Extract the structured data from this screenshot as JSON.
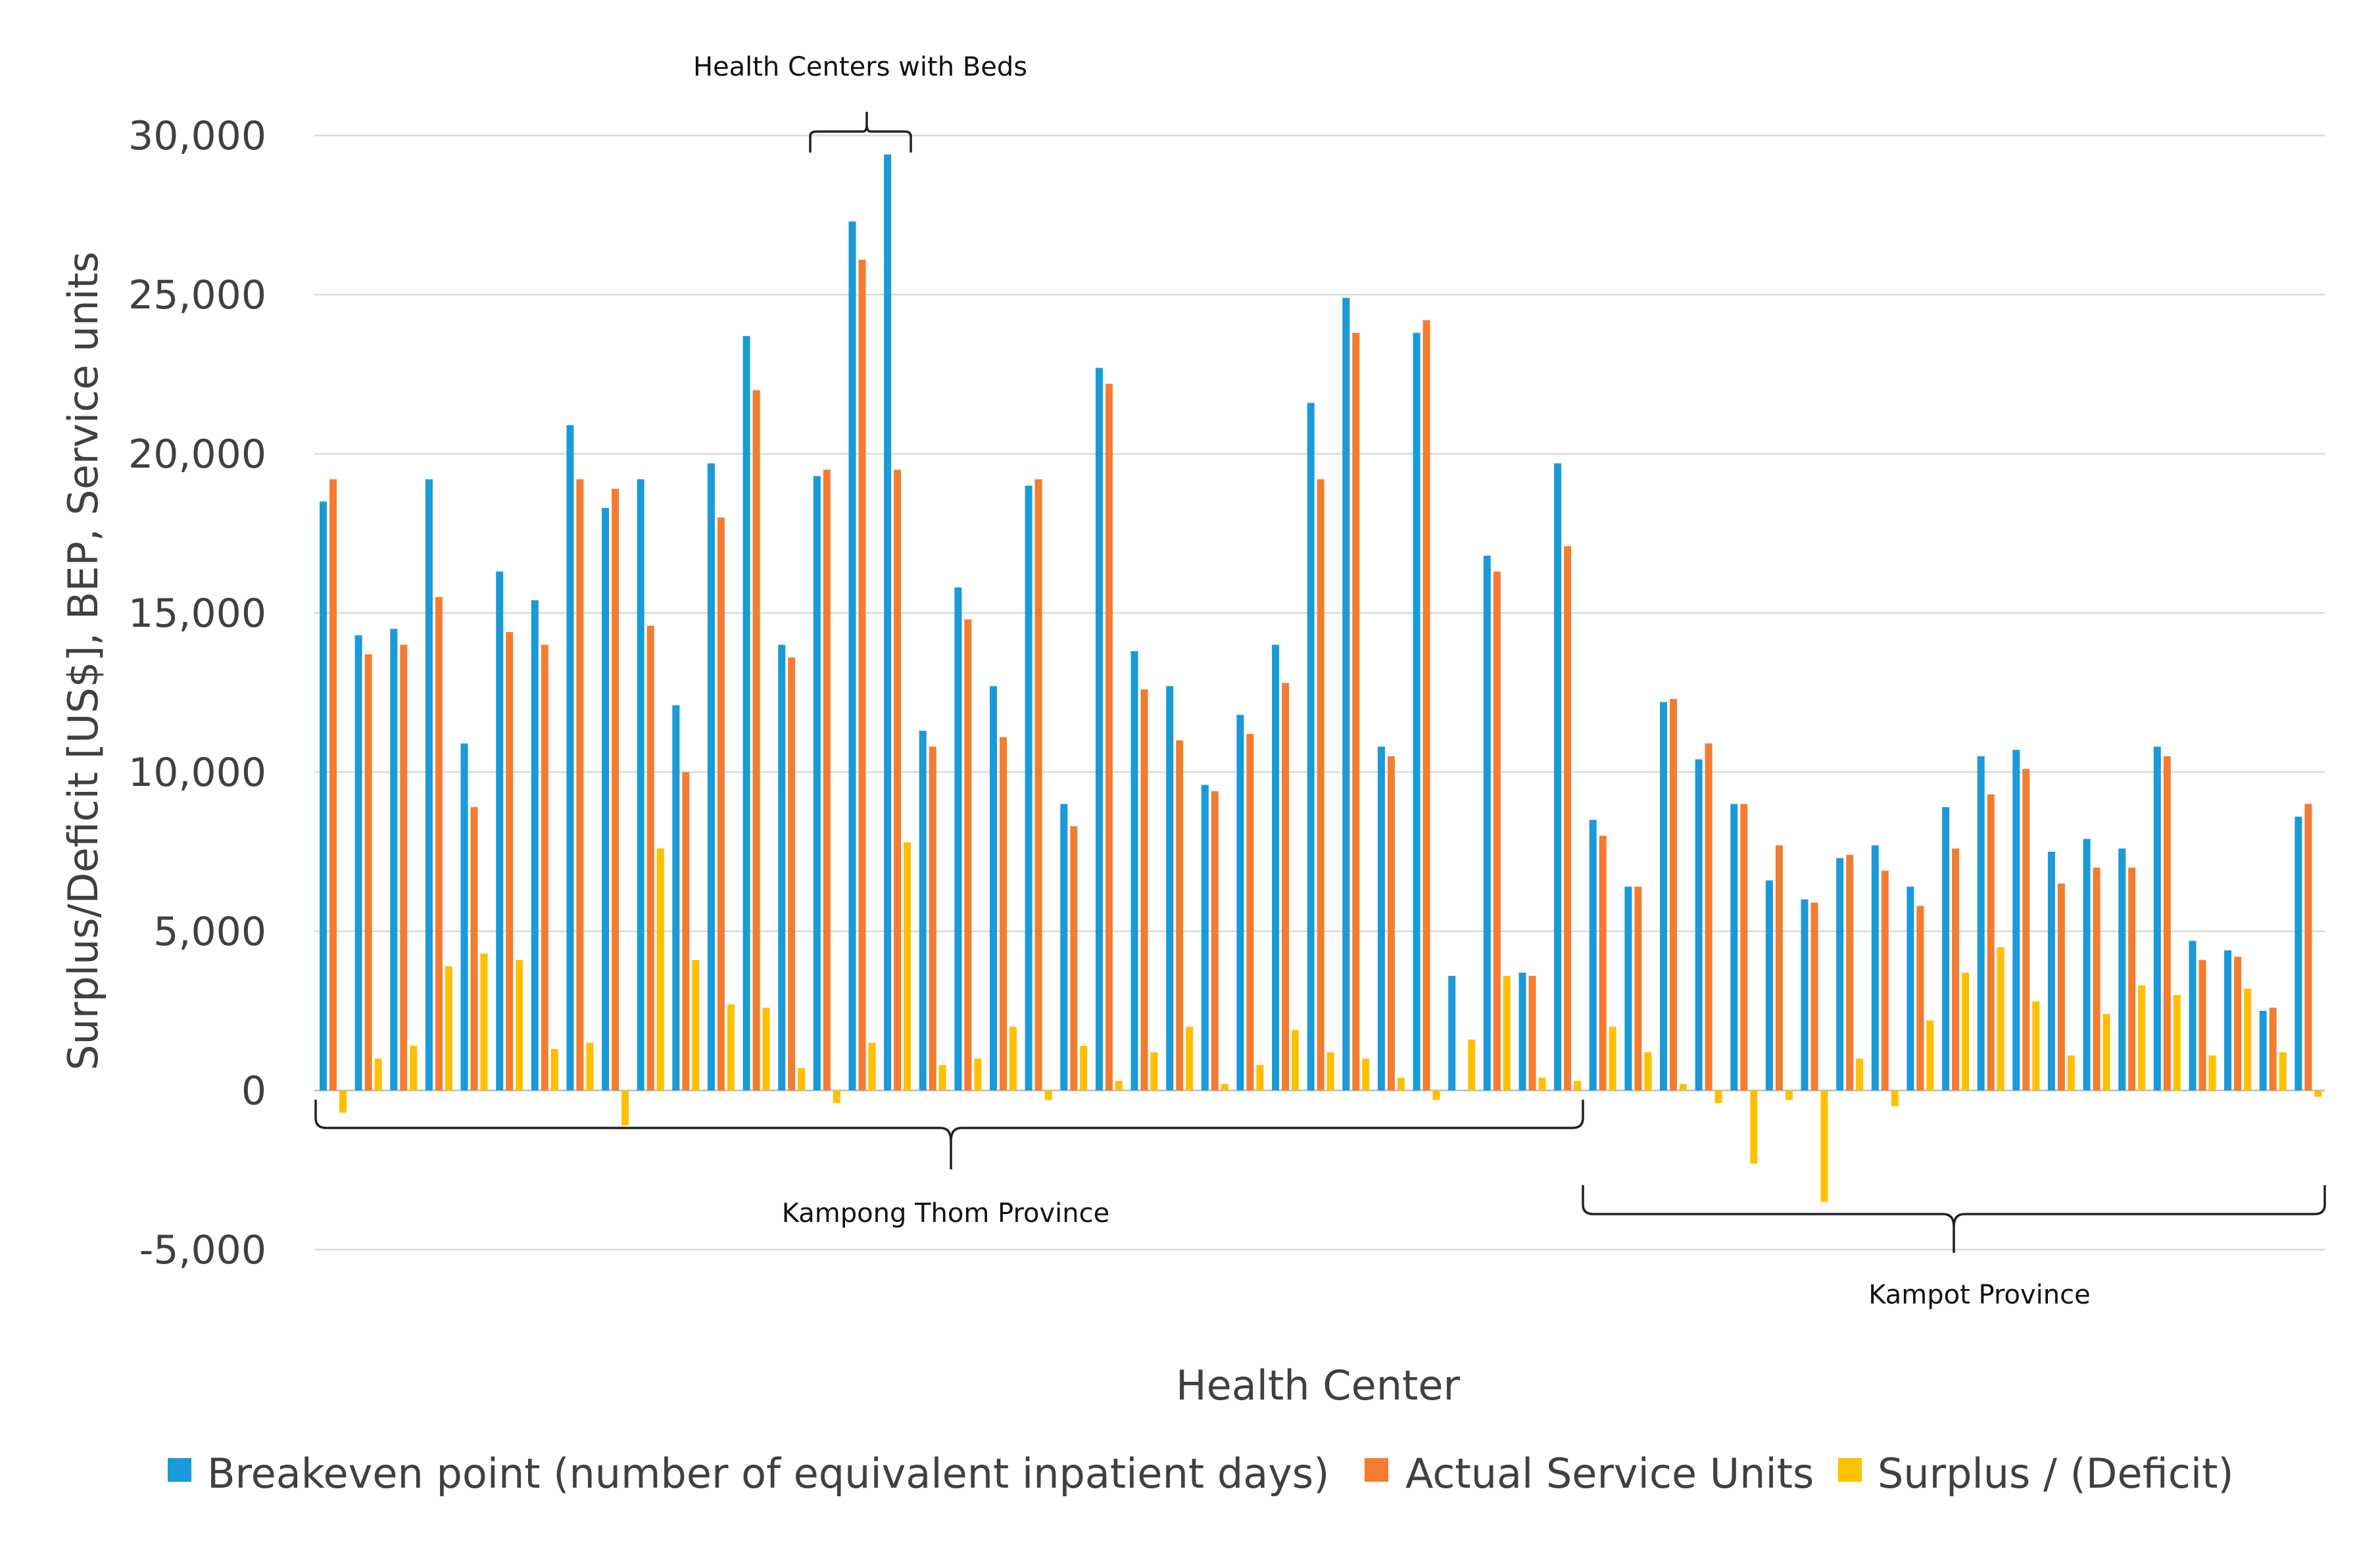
{
  "chart_data": {
    "type": "bar",
    "xlabel": "Health Center",
    "ylabel": "Surplus/Deficit [US$], BEP, Service units",
    "ylim": [
      -5000,
      30000
    ],
    "yticks": [
      30000,
      25000,
      20000,
      15000,
      10000,
      5000,
      0,
      -5000
    ],
    "ytick_labels": [
      "30,000",
      "25,000",
      "20,000",
      "15,000",
      "10,000",
      "5,000",
      "0",
      "-5,000"
    ],
    "grid": true,
    "legend_position": "bottom",
    "colors": {
      "Breakeven point (number of equivalent inpatient days)": "#1a9ad8",
      "Actual Service Units": "#f47c30",
      "Surplus / (Deficit)": "#ffc000"
    },
    "series": [
      {
        "name": "Breakeven point (number of equivalent inpatient days)",
        "values": [
          18500,
          14300,
          14500,
          19200,
          10900,
          16300,
          15400,
          20900,
          18300,
          19200,
          12100,
          19700,
          23700,
          14000,
          19300,
          27300,
          29400,
          11300,
          15800,
          12700,
          19000,
          9000,
          22700,
          13800,
          12700,
          9600,
          11800,
          14000,
          21600,
          24900,
          10800,
          23800,
          3600,
          16800,
          3700,
          19700,
          8500,
          6400,
          12200,
          10400,
          9000,
          6600,
          6000,
          7300,
          7700,
          6400,
          8900,
          10500,
          10700,
          7500,
          7900,
          7600,
          10800,
          4700,
          4400,
          2500,
          8600
        ]
      },
      {
        "name": "Actual Service Units",
        "values": [
          19200,
          13700,
          14000,
          15500,
          8900,
          14400,
          14000,
          19200,
          18900,
          14600,
          10000,
          18000,
          22000,
          13600,
          19500,
          26100,
          19500,
          10800,
          14800,
          11100,
          19200,
          8300,
          22200,
          12600,
          11000,
          9400,
          11200,
          12800,
          19200,
          23800,
          10500,
          24200,
          0,
          16300,
          3600,
          17100,
          8000,
          6400,
          12300,
          10900,
          9000,
          7700,
          5900,
          7400,
          6900,
          5800,
          7600,
          9300,
          10100,
          6500,
          7000,
          7000,
          10500,
          4100,
          4200,
          2600,
          9000
        ]
      },
      {
        "name": "Surplus / (Deficit)",
        "values": [
          -700,
          1000,
          1400,
          3900,
          4300,
          4100,
          1300,
          1500,
          -1100,
          7600,
          4100,
          2700,
          2600,
          700,
          -400,
          1500,
          7800,
          800,
          1000,
          2000,
          -300,
          1400,
          300,
          1200,
          2000,
          200,
          800,
          1900,
          1200,
          1000,
          400,
          -300,
          1600,
          3600,
          400,
          300,
          2000,
          1200,
          200,
          -400,
          -2300,
          -300,
          -3500,
          1000,
          -500,
          2200,
          3700,
          4500,
          2800,
          1100,
          2400,
          3300,
          3000,
          1100,
          3200,
          1200,
          -200
        ]
      }
    ],
    "annotations": {
      "beds_group": "Health Centers with Beds",
      "province_a": "Kampong Thom Province",
      "province_b": "Kampot Province"
    }
  }
}
